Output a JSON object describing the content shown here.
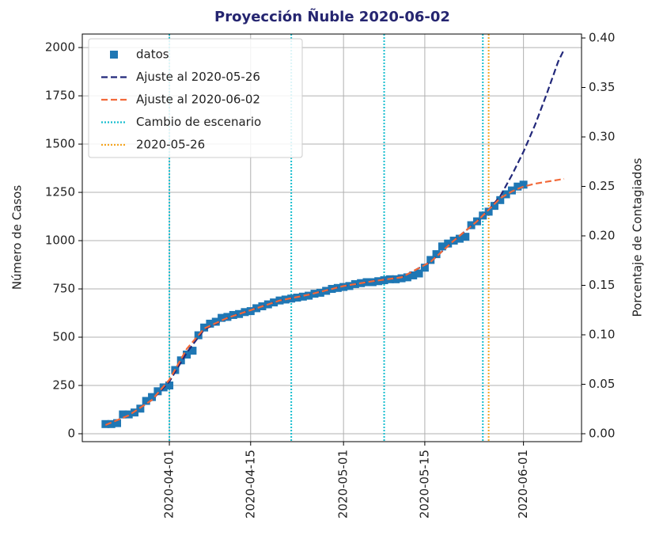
{
  "chart_data": {
    "type": "line",
    "title": "Proyección Ñuble 2020-06-02",
    "ylabel": "Número de Casos",
    "y2label": "Porcentaje de Contagiados",
    "xlim": [
      "2020-03-17",
      "2020-06-11"
    ],
    "xticks": [
      "2020-04-01",
      "2020-04-15",
      "2020-05-01",
      "2020-05-15",
      "2020-06-01"
    ],
    "ylim": [
      -41,
      2070
    ],
    "yticks": [
      0,
      250,
      500,
      750,
      1000,
      1250,
      1500,
      1750,
      2000
    ],
    "y2lim": [
      -0.008,
      0.404
    ],
    "y2ticks": [
      {
        "value": 0,
        "label": "0.00"
      },
      {
        "value": 0.05,
        "label": "0.05"
      },
      {
        "value": 0.1,
        "label": "0.10"
      },
      {
        "value": 0.15,
        "label": "0.15"
      },
      {
        "value": 0.2,
        "label": "0.20"
      },
      {
        "value": 0.25,
        "label": "0.25"
      },
      {
        "value": 0.3,
        "label": "0.30"
      },
      {
        "value": 0.35,
        "label": "0.35"
      },
      {
        "value": 0.4,
        "label": "0.40"
      }
    ],
    "grid": true,
    "legend": "upper left",
    "series": [
      {
        "name": "datos",
        "color": "#1f77b4",
        "marker": "square",
        "x": [
          "2020-03-21",
          "2020-03-22",
          "2020-03-23",
          "2020-03-24",
          "2020-03-25",
          "2020-03-26",
          "2020-03-27",
          "2020-03-28",
          "2020-03-29",
          "2020-03-30",
          "2020-03-31",
          "2020-04-01",
          "2020-04-02",
          "2020-04-03",
          "2020-04-04",
          "2020-04-05",
          "2020-04-06",
          "2020-04-07",
          "2020-04-08",
          "2020-04-09",
          "2020-04-10",
          "2020-04-11",
          "2020-04-12",
          "2020-04-13",
          "2020-04-14",
          "2020-04-15",
          "2020-04-16",
          "2020-04-17",
          "2020-04-18",
          "2020-04-19",
          "2020-04-20",
          "2020-04-21",
          "2020-04-22",
          "2020-04-23",
          "2020-04-24",
          "2020-04-25",
          "2020-04-26",
          "2020-04-27",
          "2020-04-28",
          "2020-04-29",
          "2020-04-30",
          "2020-05-01",
          "2020-05-02",
          "2020-05-03",
          "2020-05-04",
          "2020-05-05",
          "2020-05-06",
          "2020-05-07",
          "2020-05-08",
          "2020-05-09",
          "2020-05-10",
          "2020-05-11",
          "2020-05-12",
          "2020-05-13",
          "2020-05-14",
          "2020-05-15",
          "2020-05-16",
          "2020-05-17",
          "2020-05-18",
          "2020-05-19",
          "2020-05-20",
          "2020-05-21",
          "2020-05-22",
          "2020-05-23",
          "2020-05-24",
          "2020-05-25",
          "2020-05-26",
          "2020-05-27",
          "2020-05-28",
          "2020-05-29",
          "2020-05-30",
          "2020-05-31",
          "2020-06-01"
        ],
        "values": [
          50,
          50,
          55,
          100,
          100,
          110,
          130,
          170,
          190,
          220,
          240,
          250,
          330,
          380,
          410,
          430,
          510,
          550,
          570,
          580,
          600,
          605,
          615,
          620,
          630,
          635,
          650,
          660,
          670,
          680,
          690,
          695,
          700,
          705,
          710,
          715,
          725,
          730,
          740,
          750,
          755,
          760,
          765,
          775,
          780,
          785,
          785,
          790,
          795,
          800,
          800,
          805,
          810,
          820,
          830,
          860,
          900,
          930,
          970,
          985,
          1000,
          1010,
          1020,
          1080,
          1100,
          1130,
          1150,
          1180,
          1210,
          1240,
          1260,
          1280,
          1290
        ]
      },
      {
        "name": "Ajuste al 2020-05-26",
        "color": "#22287a",
        "dash": "dashed",
        "x": [
          "2020-03-21",
          "2020-03-25",
          "2020-03-29",
          "2020-04-01",
          "2020-04-04",
          "2020-04-07",
          "2020-04-11",
          "2020-04-15",
          "2020-04-20",
          "2020-04-25",
          "2020-05-01",
          "2020-05-06",
          "2020-05-11",
          "2020-05-16",
          "2020-05-20",
          "2020-05-24",
          "2020-05-26",
          "2020-05-28",
          "2020-05-30",
          "2020-06-01",
          "2020-06-03",
          "2020-06-05",
          "2020-06-07",
          "2020-06-08"
        ],
        "values": [
          45,
          95,
          175,
          270,
          420,
          540,
          600,
          640,
          690,
          720,
          765,
          790,
          810,
          890,
          1000,
          1100,
          1160,
          1230,
          1340,
          1460,
          1600,
          1760,
          1930,
          1990
        ]
      },
      {
        "name": "Ajuste al 2020-06-02",
        "color": "#f26a3a",
        "dash": "dashed",
        "x": [
          "2020-03-21",
          "2020-03-25",
          "2020-03-29",
          "2020-04-01",
          "2020-04-04",
          "2020-04-07",
          "2020-04-11",
          "2020-04-15",
          "2020-04-20",
          "2020-04-25",
          "2020-05-01",
          "2020-05-06",
          "2020-05-11",
          "2020-05-16",
          "2020-05-20",
          "2020-05-24",
          "2020-05-26",
          "2020-05-28",
          "2020-05-30",
          "2020-06-01",
          "2020-06-03",
          "2020-06-05",
          "2020-06-07",
          "2020-06-08"
        ],
        "values": [
          45,
          95,
          175,
          280,
          440,
          545,
          600,
          640,
          690,
          720,
          765,
          790,
          810,
          890,
          1000,
          1100,
          1160,
          1220,
          1255,
          1280,
          1295,
          1305,
          1315,
          1320
        ]
      }
    ],
    "vlines": [
      {
        "name": "Cambio de escenario",
        "color": "#17becf",
        "x": [
          "2020-04-01",
          "2020-04-22",
          "2020-05-08",
          "2020-05-25"
        ]
      },
      {
        "name": "2020-05-26",
        "color": "#f5a623",
        "x": [
          "2020-05-26"
        ]
      }
    ]
  }
}
